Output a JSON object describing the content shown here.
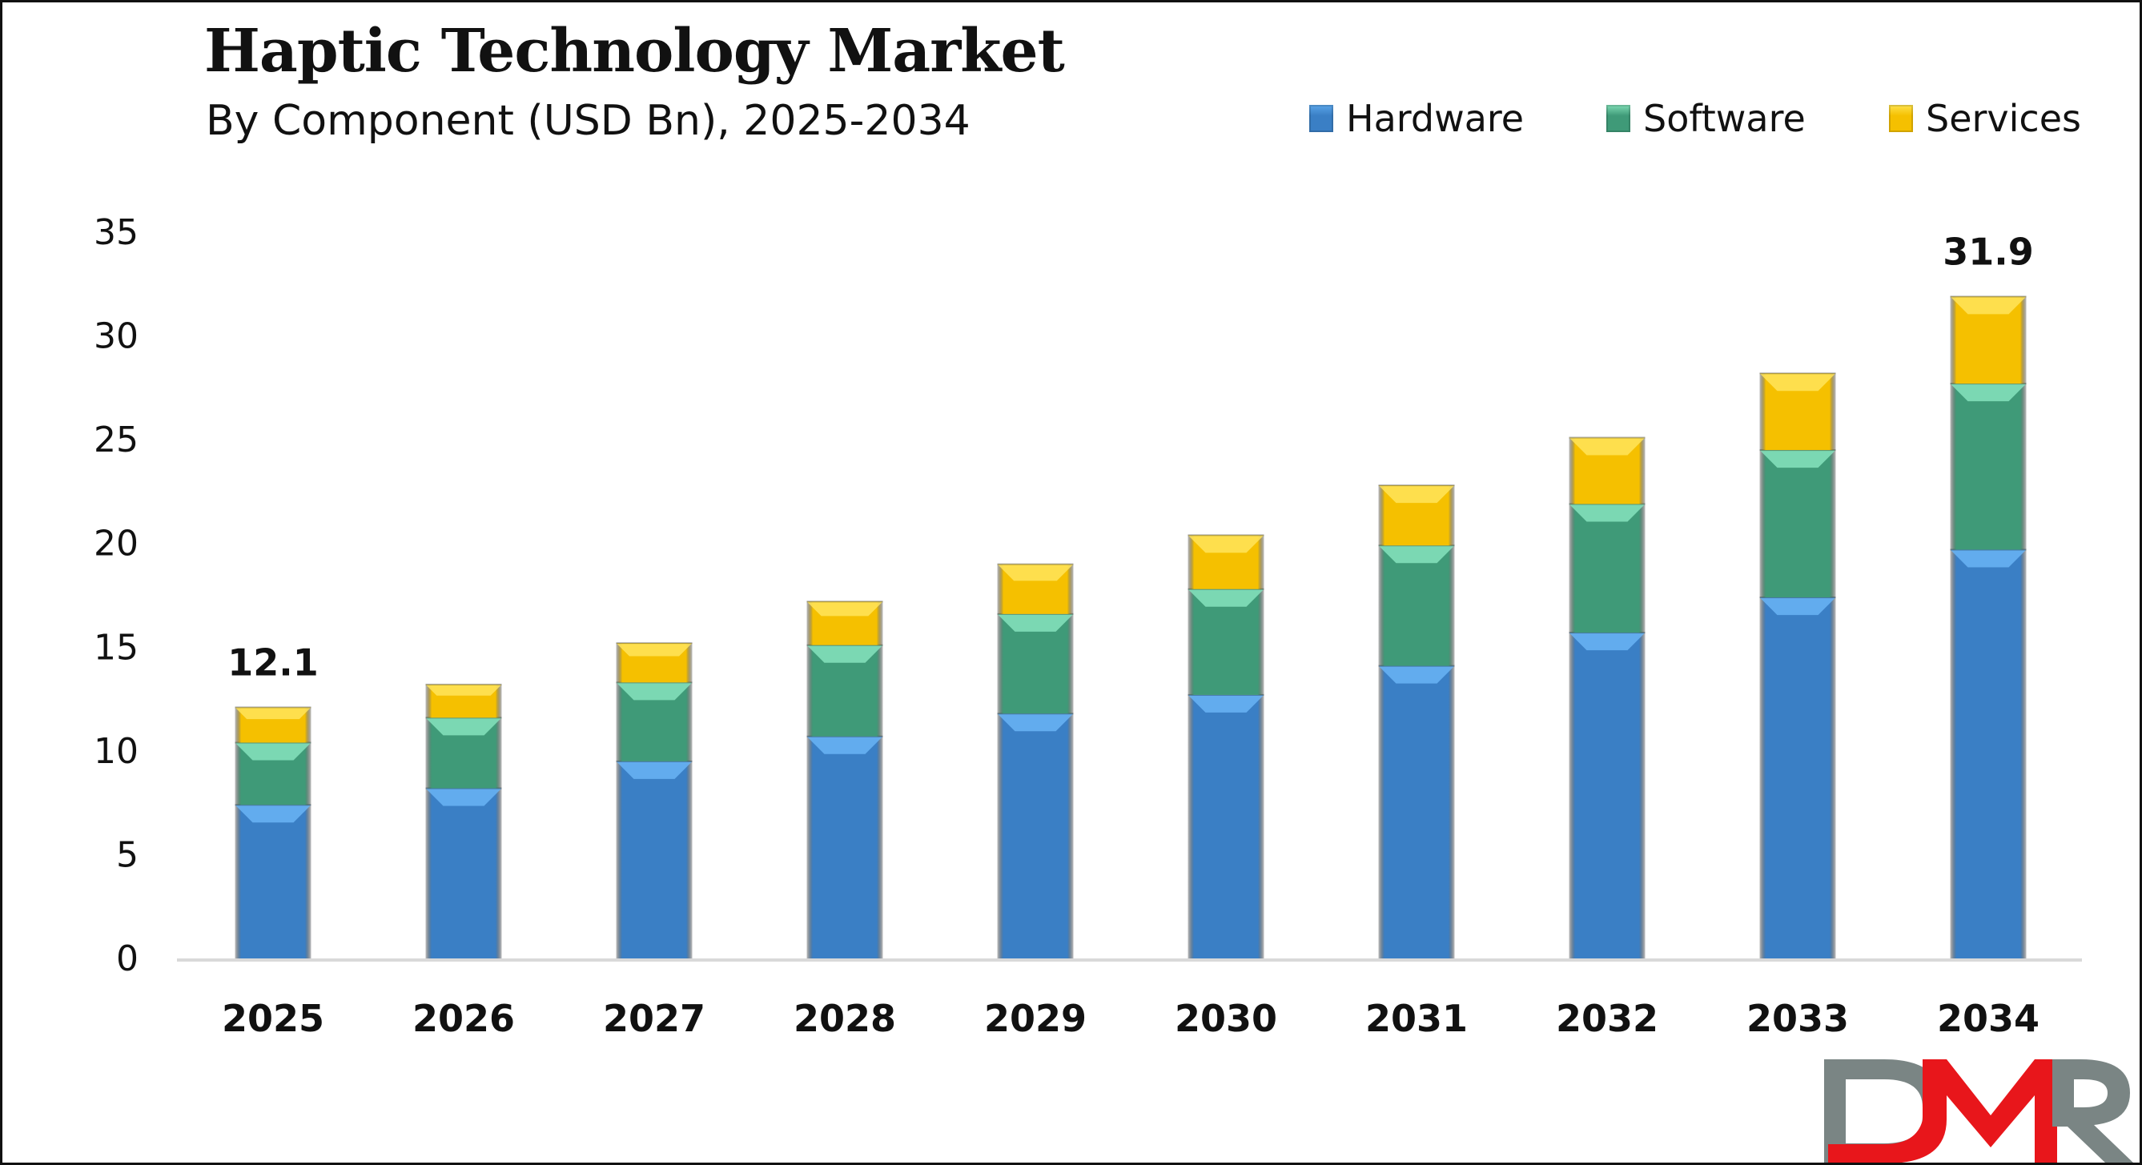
{
  "title": "Haptic Technology Market",
  "subtitle": "By Component (USD Bn), 2025-2034",
  "logo": {
    "text": "DMR",
    "colors": {
      "D": "#7a8584",
      "M": "#e8161b",
      "R": "#7a8584"
    }
  },
  "chart_data": {
    "type": "bar",
    "stacked": true,
    "title": "Haptic Technology Market",
    "subtitle": "By Component (USD Bn), 2025-2034",
    "xlabel": "",
    "ylabel": "",
    "ylim": [
      0,
      35
    ],
    "yticks": [
      0,
      5,
      10,
      15,
      20,
      25,
      30,
      35
    ],
    "grid": false,
    "legend_position": "top-right",
    "categories": [
      "2025",
      "2026",
      "2027",
      "2028",
      "2029",
      "2030",
      "2031",
      "2032",
      "2033",
      "2034"
    ],
    "series": [
      {
        "name": "Hardware",
        "color": "#3a7fc5",
        "values": [
          7.4,
          8.2,
          9.5,
          10.7,
          11.8,
          12.7,
          14.1,
          15.7,
          17.4,
          19.7
        ]
      },
      {
        "name": "Software",
        "color": "#3f9a78",
        "values": [
          3.0,
          3.4,
          3.8,
          4.4,
          4.8,
          5.1,
          5.8,
          6.2,
          7.1,
          8.0
        ]
      },
      {
        "name": "Services",
        "color": "#f5c000",
        "values": [
          1.7,
          1.6,
          1.9,
          2.1,
          2.4,
          2.6,
          2.9,
          3.2,
          3.7,
          4.2
        ]
      }
    ],
    "data_labels": [
      {
        "category": "2025",
        "text": "12.1"
      },
      {
        "category": "2034",
        "text": "31.9"
      }
    ]
  }
}
